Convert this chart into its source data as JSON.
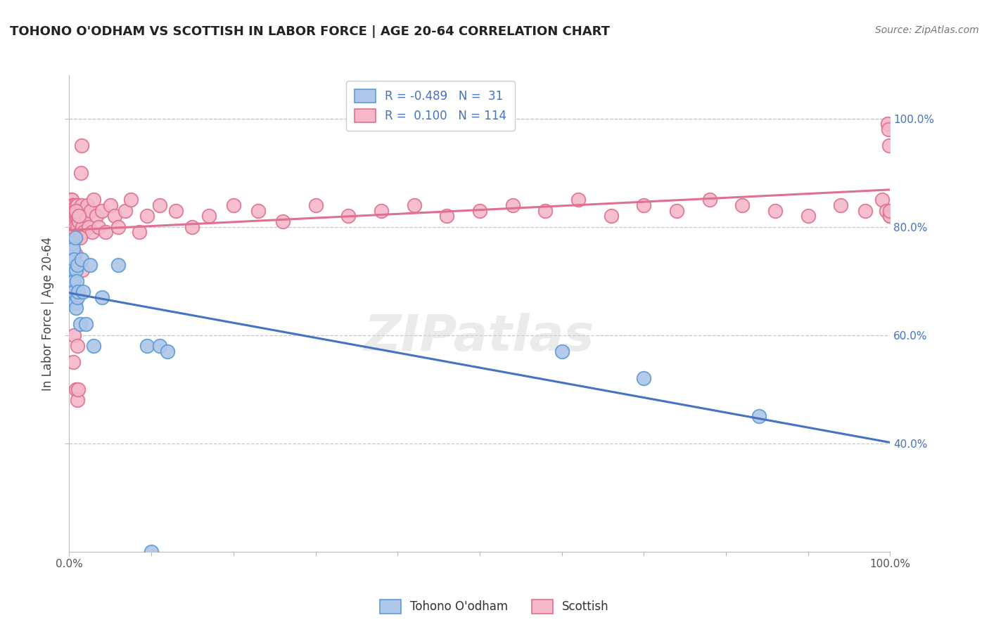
{
  "title": "TOHONO O'ODHAM VS SCOTTISH IN LABOR FORCE | AGE 20-64 CORRELATION CHART",
  "source": "Source: ZipAtlas.com",
  "ylabel": "In Labor Force | Age 20-64",
  "xlim": [
    0.0,
    1.0
  ],
  "ylim": [
    0.2,
    1.08
  ],
  "legend_r_blue": "-0.489",
  "legend_n_blue": "31",
  "legend_r_pink": "0.100",
  "legend_n_pink": "114",
  "blue_fill": "#aec6e8",
  "blue_edge": "#5b9bd5",
  "pink_fill": "#f4b8c8",
  "pink_edge": "#e07090",
  "blue_line": "#4472c4",
  "pink_line": "#e07090",
  "grid_color": "#c8c8c8",
  "bg": "#ffffff",
  "watermark": "ZIPatlas",
  "right_label_color": "#4472c4",
  "tohono_x": [
    0.004,
    0.004,
    0.005,
    0.005,
    0.005,
    0.006,
    0.006,
    0.006,
    0.007,
    0.007,
    0.008,
    0.008,
    0.009,
    0.01,
    0.01,
    0.011,
    0.013,
    0.015,
    0.017,
    0.02,
    0.025,
    0.03,
    0.04,
    0.06,
    0.095,
    0.11,
    0.12,
    0.6,
    0.7,
    0.84,
    0.1
  ],
  "tohono_y": [
    0.77,
    0.74,
    0.76,
    0.72,
    0.68,
    0.74,
    0.7,
    0.68,
    0.78,
    0.66,
    0.72,
    0.65,
    0.7,
    0.73,
    0.67,
    0.68,
    0.62,
    0.74,
    0.68,
    0.62,
    0.73,
    0.58,
    0.67,
    0.73,
    0.58,
    0.58,
    0.57,
    0.57,
    0.52,
    0.45,
    0.2
  ],
  "scottish_x": [
    0.001,
    0.001,
    0.001,
    0.001,
    0.001,
    0.002,
    0.002,
    0.002,
    0.002,
    0.002,
    0.002,
    0.002,
    0.003,
    0.003,
    0.003,
    0.003,
    0.003,
    0.003,
    0.003,
    0.004,
    0.004,
    0.004,
    0.004,
    0.004,
    0.005,
    0.005,
    0.005,
    0.005,
    0.006,
    0.006,
    0.006,
    0.006,
    0.007,
    0.007,
    0.007,
    0.008,
    0.008,
    0.008,
    0.009,
    0.01,
    0.01,
    0.01,
    0.011,
    0.012,
    0.013,
    0.014,
    0.015,
    0.016,
    0.017,
    0.018,
    0.02,
    0.022,
    0.024,
    0.026,
    0.028,
    0.03,
    0.033,
    0.036,
    0.04,
    0.044,
    0.05,
    0.055,
    0.06,
    0.068,
    0.075,
    0.085,
    0.095,
    0.11,
    0.13,
    0.15,
    0.17,
    0.2,
    0.23,
    0.26,
    0.3,
    0.34,
    0.38,
    0.42,
    0.46,
    0.5,
    0.54,
    0.58,
    0.62,
    0.66,
    0.7,
    0.74,
    0.78,
    0.82,
    0.86,
    0.9,
    0.94,
    0.97,
    0.99,
    0.995,
    0.997,
    0.998,
    0.999,
    1.0,
    1.0,
    1.0,
    0.005,
    0.006,
    0.007,
    0.008,
    0.008,
    0.009,
    0.01,
    0.01,
    0.011,
    0.012,
    0.013,
    0.014,
    0.015,
    0.016
  ],
  "scottish_y": [
    0.82,
    0.84,
    0.8,
    0.83,
    0.78,
    0.82,
    0.84,
    0.79,
    0.83,
    0.78,
    0.8,
    0.85,
    0.82,
    0.84,
    0.79,
    0.83,
    0.8,
    0.78,
    0.85,
    0.82,
    0.84,
    0.79,
    0.83,
    0.8,
    0.82,
    0.84,
    0.79,
    0.83,
    0.81,
    0.78,
    0.82,
    0.84,
    0.8,
    0.83,
    0.79,
    0.82,
    0.84,
    0.78,
    0.83,
    0.8,
    0.82,
    0.84,
    0.83,
    0.81,
    0.79,
    0.82,
    0.84,
    0.8,
    0.83,
    0.79,
    0.82,
    0.84,
    0.8,
    0.83,
    0.79,
    0.85,
    0.82,
    0.8,
    0.83,
    0.79,
    0.84,
    0.82,
    0.8,
    0.83,
    0.85,
    0.79,
    0.82,
    0.84,
    0.83,
    0.8,
    0.82,
    0.84,
    0.83,
    0.81,
    0.84,
    0.82,
    0.83,
    0.84,
    0.82,
    0.83,
    0.84,
    0.83,
    0.85,
    0.82,
    0.84,
    0.83,
    0.85,
    0.84,
    0.83,
    0.82,
    0.84,
    0.83,
    0.85,
    0.83,
    0.99,
    0.98,
    0.95,
    0.82,
    0.82,
    0.83,
    0.55,
    0.6,
    0.75,
    0.83,
    0.5,
    0.68,
    0.48,
    0.58,
    0.5,
    0.82,
    0.78,
    0.9,
    0.95,
    0.72
  ]
}
